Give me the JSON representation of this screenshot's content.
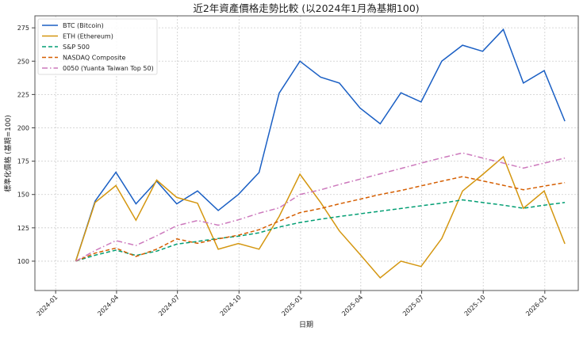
{
  "chart_data": {
    "type": "line",
    "title": "近2年資產價格走勢比較 (以2024年1月為基期100)",
    "xlabel": "日期",
    "ylabel": "標準化價格 (基期=100)",
    "ylim": [
      78,
      284
    ],
    "xlim": [
      "2023-12-01",
      "2026-02-20"
    ],
    "grid": true,
    "legend_position": "top-left",
    "x_ticks": [
      "2024-01",
      "2024-04",
      "2024-07",
      "2024-10",
      "2025-01",
      "2025-04",
      "2025-07",
      "2025-10",
      "2026-01"
    ],
    "y_ticks": [
      100,
      125,
      150,
      175,
      200,
      225,
      250,
      275
    ],
    "x": [
      "2024-01-31",
      "2024-02-29",
      "2024-03-31",
      "2024-04-30",
      "2024-05-31",
      "2024-06-30",
      "2024-07-31",
      "2024-08-31",
      "2024-09-30",
      "2024-10-31",
      "2024-11-30",
      "2024-12-31",
      "2025-01-31",
      "2025-02-28",
      "2025-03-31",
      "2025-04-30",
      "2025-05-31",
      "2025-06-30",
      "2025-07-31",
      "2025-08-31",
      "2025-09-30",
      "2025-10-31",
      "2025-11-30",
      "2025-12-31",
      "2026-01-31"
    ],
    "series": [
      {
        "name": "BTC (Bitcoin)",
        "color": "#1a5fc4",
        "style": "solid",
        "values": [
          100,
          145,
          166.7,
          143,
          160,
          143,
          152.7,
          138,
          150,
          166.5,
          226,
          250,
          238,
          233.6,
          214.8,
          203,
          226.3,
          219.4,
          250,
          262,
          257.4,
          273.8,
          233.6,
          242.9,
          205
        ]
      },
      {
        "name": "ETH (Ethereum)",
        "color": "#d4960f",
        "style": "solid",
        "values": [
          100,
          144,
          156.7,
          130.7,
          160.8,
          147.8,
          143.5,
          109,
          113.2,
          109,
          133.5,
          165.2,
          144,
          122.7,
          105,
          87.5,
          100,
          96,
          117,
          152.6,
          165,
          178.3,
          139.7,
          152.6,
          113
        ]
      },
      {
        "name": "S&P 500",
        "color": "#029e73",
        "style": "dashed",
        "values": [
          100,
          104.5,
          108.3,
          104.3,
          107.5,
          112.8,
          114.8,
          117,
          118.7,
          121.3,
          125.6,
          129,
          131.5,
          133.5,
          135.5,
          137.5,
          139.5,
          141.5,
          143.5,
          146,
          144,
          142,
          139.7,
          142,
          144
        ]
      },
      {
        "name": "NASDAQ Composite",
        "color": "#d55e00",
        "style": "dashed",
        "values": [
          100,
          106,
          109.8,
          103.5,
          109,
          116.7,
          113.4,
          116.7,
          119.5,
          123.6,
          130,
          136.4,
          139.5,
          143,
          146.5,
          150,
          153,
          156.5,
          160,
          163.4,
          160.2,
          156.9,
          153.6,
          156.3,
          158.9
        ]
      },
      {
        "name": "0050 (Yuanta Taiwan Top 50)",
        "color": "#cc78bc",
        "style": "dashdot",
        "values": [
          100,
          108,
          115.4,
          111.8,
          119,
          126.6,
          130.5,
          127,
          131,
          136,
          140,
          150,
          153.5,
          157.5,
          161.5,
          165.5,
          169.5,
          173.5,
          177.5,
          181.2,
          177.4,
          173.6,
          169.8,
          173.5,
          177.3
        ]
      }
    ]
  }
}
